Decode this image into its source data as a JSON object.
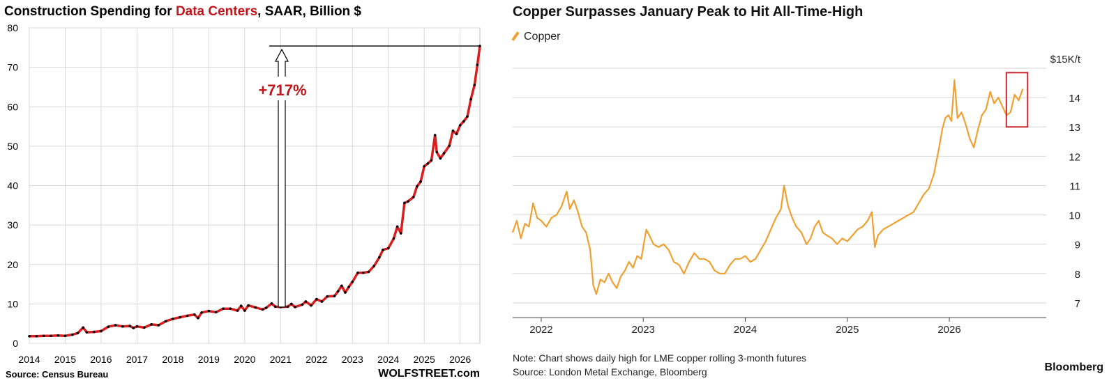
{
  "left": {
    "title_pre": "Construction Spending for ",
    "title_highlight": "Data Centers",
    "title_post": ", SAAR, Billion $",
    "source": "Source: Census Bureau",
    "brand": "WOLFSTREET.com",
    "annotation": "+717%",
    "colors": {
      "line": "#d81e1e",
      "dots": "#000000",
      "annotation": "#c0161b",
      "grid": "#d9d9d9"
    }
  },
  "right": {
    "title": "Copper Surpasses January Peak to Hit All-Time-High",
    "legend_label": "Copper",
    "unit_label": "$15K/t",
    "note": "Note: Chart shows daily high for LME copper rolling 3-month futures",
    "source": "Source: London Metal Exchange, Bloomberg",
    "brand": "Bloomberg",
    "colors": {
      "line": "#f0a030",
      "highlight_box": "#c8262c",
      "grid": "#d6d6d6"
    }
  },
  "chart_data": [
    {
      "type": "line",
      "title": "Construction Spending for Data Centers, SAAR, Billion $",
      "xlabel": "",
      "ylabel": "",
      "xlim": [
        2014,
        2026.55
      ],
      "ylim": [
        0,
        80
      ],
      "xticks": [
        "2014",
        "2015",
        "2016",
        "2017",
        "2018",
        "2019",
        "2020",
        "2021",
        "2022",
        "2023",
        "2024",
        "2025",
        "2026"
      ],
      "yticks": [
        "0",
        "10",
        "20",
        "30",
        "40",
        "50",
        "60",
        "70",
        "80"
      ],
      "grid": true,
      "series": [
        {
          "points": [
            [
              2014.0,
              1.8
            ],
            [
              2014.2,
              1.8
            ],
            [
              2014.4,
              1.9
            ],
            [
              2014.6,
              1.9
            ],
            [
              2014.8,
              2.0
            ],
            [
              2015.0,
              1.9
            ],
            [
              2015.2,
              2.2
            ],
            [
              2015.35,
              2.6
            ],
            [
              2015.5,
              4.0
            ],
            [
              2015.6,
              2.8
            ],
            [
              2015.8,
              2.9
            ],
            [
              2016.0,
              3.1
            ],
            [
              2016.2,
              4.2
            ],
            [
              2016.4,
              4.6
            ],
            [
              2016.6,
              4.3
            ],
            [
              2016.8,
              4.4
            ],
            [
              2016.9,
              3.9
            ],
            [
              2017.0,
              4.3
            ],
            [
              2017.2,
              4.0
            ],
            [
              2017.4,
              4.8
            ],
            [
              2017.6,
              4.6
            ],
            [
              2017.8,
              5.6
            ],
            [
              2018.0,
              6.2
            ],
            [
              2018.2,
              6.6
            ],
            [
              2018.4,
              7.0
            ],
            [
              2018.6,
              7.3
            ],
            [
              2018.7,
              6.4
            ],
            [
              2018.8,
              7.8
            ],
            [
              2019.0,
              8.2
            ],
            [
              2019.2,
              7.9
            ],
            [
              2019.4,
              8.8
            ],
            [
              2019.6,
              8.8
            ],
            [
              2019.8,
              8.3
            ],
            [
              2019.9,
              9.5
            ],
            [
              2020.0,
              8.3
            ],
            [
              2020.1,
              9.6
            ],
            [
              2020.3,
              9.1
            ],
            [
              2020.5,
              8.6
            ],
            [
              2020.6,
              9.0
            ],
            [
              2020.75,
              10.1
            ],
            [
              2020.85,
              9.3
            ],
            [
              2021.0,
              9.2
            ],
            [
              2021.2,
              9.3
            ],
            [
              2021.3,
              10.0
            ],
            [
              2021.4,
              9.2
            ],
            [
              2021.6,
              9.8
            ],
            [
              2021.7,
              10.6
            ],
            [
              2021.85,
              9.6
            ],
            [
              2022.0,
              11.2
            ],
            [
              2022.15,
              10.6
            ],
            [
              2022.3,
              11.9
            ],
            [
              2022.5,
              12.0
            ],
            [
              2022.6,
              13.2
            ],
            [
              2022.7,
              14.6
            ],
            [
              2022.8,
              12.9
            ],
            [
              2022.9,
              14.3
            ],
            [
              2023.0,
              15.6
            ],
            [
              2023.15,
              17.9
            ],
            [
              2023.3,
              17.9
            ],
            [
              2023.45,
              18.1
            ],
            [
              2023.6,
              19.6
            ],
            [
              2023.75,
              21.8
            ],
            [
              2023.85,
              23.7
            ],
            [
              2024.0,
              24.1
            ],
            [
              2024.15,
              26.6
            ],
            [
              2024.25,
              29.6
            ],
            [
              2024.35,
              27.9
            ],
            [
              2024.45,
              35.6
            ],
            [
              2024.55,
              36.0
            ],
            [
              2024.7,
              37.1
            ],
            [
              2024.8,
              39.8
            ],
            [
              2024.9,
              41.0
            ],
            [
              2025.0,
              44.9
            ],
            [
              2025.1,
              45.6
            ],
            [
              2025.2,
              46.4
            ],
            [
              2025.3,
              52.8
            ],
            [
              2025.35,
              48.5
            ],
            [
              2025.45,
              46.9
            ],
            [
              2025.55,
              48.2
            ],
            [
              2025.7,
              50.1
            ],
            [
              2025.8,
              53.9
            ],
            [
              2025.9,
              53.1
            ],
            [
              2026.0,
              55.3
            ],
            [
              2026.1,
              56.3
            ],
            [
              2026.2,
              57.5
            ],
            [
              2026.3,
              61.9
            ],
            [
              2026.4,
              65.5
            ],
            [
              2026.48,
              70.6
            ],
            [
              2026.55,
              75.4
            ]
          ]
        }
      ],
      "annotations": [
        {
          "text": "+717%",
          "from_value": 9.2,
          "to_value": 75.4
        }
      ]
    },
    {
      "type": "line",
      "title": "Copper Surpasses January Peak to Hit All-Time-High",
      "xlabel": "",
      "ylabel": "$15K/t",
      "xlim": [
        2021.72,
        2026.95
      ],
      "ylim": [
        6.5,
        15
      ],
      "xticks": [
        "2022",
        "2023",
        "2024",
        "2025",
        "2026"
      ],
      "yticks": [
        "7",
        "8",
        "9",
        "10",
        "11",
        "12",
        "13",
        "14",
        "$15K/t"
      ],
      "grid": true,
      "legend": {
        "position": "top-left",
        "entries": [
          "Copper"
        ]
      },
      "series": [
        {
          "name": "Copper",
          "points": [
            [
              2021.72,
              9.4
            ],
            [
              2021.76,
              9.8
            ],
            [
              2021.8,
              9.2
            ],
            [
              2021.84,
              9.7
            ],
            [
              2021.88,
              9.6
            ],
            [
              2021.92,
              10.4
            ],
            [
              2021.96,
              9.9
            ],
            [
              2022.0,
              9.8
            ],
            [
              2022.05,
              9.6
            ],
            [
              2022.1,
              9.9
            ],
            [
              2022.15,
              10.0
            ],
            [
              2022.2,
              10.3
            ],
            [
              2022.25,
              10.8
            ],
            [
              2022.28,
              10.2
            ],
            [
              2022.32,
              10.5
            ],
            [
              2022.36,
              10.1
            ],
            [
              2022.4,
              9.6
            ],
            [
              2022.44,
              9.4
            ],
            [
              2022.48,
              8.8
            ],
            [
              2022.51,
              7.6
            ],
            [
              2022.54,
              7.3
            ],
            [
              2022.58,
              7.8
            ],
            [
              2022.62,
              7.7
            ],
            [
              2022.66,
              8.0
            ],
            [
              2022.7,
              7.7
            ],
            [
              2022.74,
              7.5
            ],
            [
              2022.78,
              7.9
            ],
            [
              2022.82,
              8.1
            ],
            [
              2022.86,
              8.4
            ],
            [
              2022.9,
              8.2
            ],
            [
              2022.94,
              8.6
            ],
            [
              2022.98,
              8.5
            ],
            [
              2023.03,
              9.5
            ],
            [
              2023.06,
              9.3
            ],
            [
              2023.1,
              9.0
            ],
            [
              2023.15,
              8.9
            ],
            [
              2023.2,
              9.0
            ],
            [
              2023.25,
              8.8
            ],
            [
              2023.3,
              8.4
            ],
            [
              2023.35,
              8.3
            ],
            [
              2023.4,
              8.0
            ],
            [
              2023.45,
              8.4
            ],
            [
              2023.5,
              8.7
            ],
            [
              2023.55,
              8.5
            ],
            [
              2023.6,
              8.5
            ],
            [
              2023.65,
              8.4
            ],
            [
              2023.7,
              8.1
            ],
            [
              2023.75,
              8.0
            ],
            [
              2023.8,
              8.0
            ],
            [
              2023.85,
              8.3
            ],
            [
              2023.9,
              8.5
            ],
            [
              2023.95,
              8.5
            ],
            [
              2024.0,
              8.6
            ],
            [
              2024.05,
              8.4
            ],
            [
              2024.1,
              8.5
            ],
            [
              2024.15,
              8.8
            ],
            [
              2024.2,
              9.1
            ],
            [
              2024.25,
              9.5
            ],
            [
              2024.3,
              9.9
            ],
            [
              2024.35,
              10.2
            ],
            [
              2024.38,
              11.0
            ],
            [
              2024.42,
              10.3
            ],
            [
              2024.46,
              9.9
            ],
            [
              2024.5,
              9.6
            ],
            [
              2024.55,
              9.4
            ],
            [
              2024.6,
              9.0
            ],
            [
              2024.64,
              9.2
            ],
            [
              2024.68,
              9.6
            ],
            [
              2024.72,
              9.8
            ],
            [
              2024.76,
              9.4
            ],
            [
              2024.8,
              9.3
            ],
            [
              2024.85,
              9.2
            ],
            [
              2024.9,
              9.0
            ],
            [
              2024.95,
              9.2
            ],
            [
              2025.0,
              9.1
            ],
            [
              2025.05,
              9.3
            ],
            [
              2025.1,
              9.5
            ],
            [
              2025.15,
              9.6
            ],
            [
              2025.2,
              9.8
            ],
            [
              2025.24,
              10.1
            ],
            [
              2025.27,
              8.9
            ],
            [
              2025.3,
              9.3
            ],
            [
              2025.35,
              9.5
            ],
            [
              2025.4,
              9.6
            ],
            [
              2025.45,
              9.7
            ],
            [
              2025.5,
              9.8
            ],
            [
              2025.55,
              9.9
            ],
            [
              2025.6,
              10.0
            ],
            [
              2025.65,
              10.1
            ],
            [
              2025.7,
              10.4
            ],
            [
              2025.75,
              10.7
            ],
            [
              2025.8,
              10.9
            ],
            [
              2025.85,
              11.4
            ],
            [
              2025.9,
              12.3
            ],
            [
              2025.93,
              12.9
            ],
            [
              2025.96,
              13.3
            ],
            [
              2025.99,
              13.4
            ],
            [
              2026.02,
              13.2
            ],
            [
              2026.05,
              14.6
            ],
            [
              2026.08,
              13.3
            ],
            [
              2026.12,
              13.5
            ],
            [
              2026.16,
              13.1
            ],
            [
              2026.2,
              12.6
            ],
            [
              2026.24,
              12.3
            ],
            [
              2026.28,
              12.9
            ],
            [
              2026.32,
              13.4
            ],
            [
              2026.36,
              13.6
            ],
            [
              2026.4,
              14.2
            ],
            [
              2026.44,
              13.8
            ],
            [
              2026.48,
              14.0
            ],
            [
              2026.52,
              13.7
            ],
            [
              2026.56,
              13.4
            ],
            [
              2026.6,
              13.5
            ],
            [
              2026.64,
              14.1
            ],
            [
              2026.68,
              13.9
            ],
            [
              2026.72,
              14.3
            ]
          ]
        }
      ]
    }
  ]
}
